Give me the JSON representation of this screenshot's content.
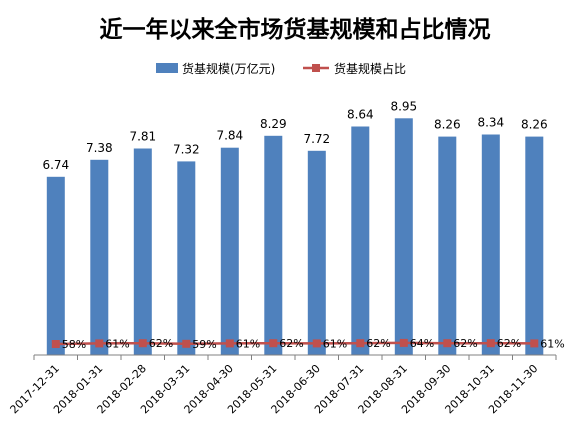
{
  "chart_data": {
    "type": "bar",
    "title": "近一年以来全市场货基规模和占比情况",
    "categories": [
      "2017-12-31",
      "2018-01-31",
      "2018-02-28",
      "2018-03-31",
      "2018-04-30",
      "2018-05-31",
      "2018-06-30",
      "2018-07-31",
      "2018-08-31",
      "2018-09-30",
      "2018-10-31",
      "2018-11-30"
    ],
    "series": [
      {
        "name": "货基规模(万亿元)",
        "type": "bar",
        "color": "#4f81bd",
        "values": [
          6.74,
          7.38,
          7.81,
          7.32,
          7.84,
          8.29,
          7.72,
          8.64,
          8.95,
          8.26,
          8.34,
          8.26
        ],
        "labels": [
          "6.74",
          "7.38",
          "7.81",
          "7.32",
          "7.84",
          "8.29",
          "7.72",
          "8.64",
          "8.95",
          "8.26",
          "8.34",
          "8.26"
        ]
      },
      {
        "name": "货基规模占比",
        "type": "line",
        "color": "#c0504d",
        "values": [
          58,
          61,
          62,
          59,
          61,
          62,
          61,
          62,
          64,
          62,
          62,
          61
        ],
        "labels": [
          "58%",
          "61%",
          "62%",
          "59%",
          "61%",
          "62%",
          "61%",
          "62%",
          "64%",
          "62%",
          "62%",
          "61%"
        ]
      }
    ],
    "bar_axis_range": [
      0,
      10
    ],
    "line_axis_range": [
      0,
      100
    ],
    "grid": false,
    "legend_position": "top"
  }
}
